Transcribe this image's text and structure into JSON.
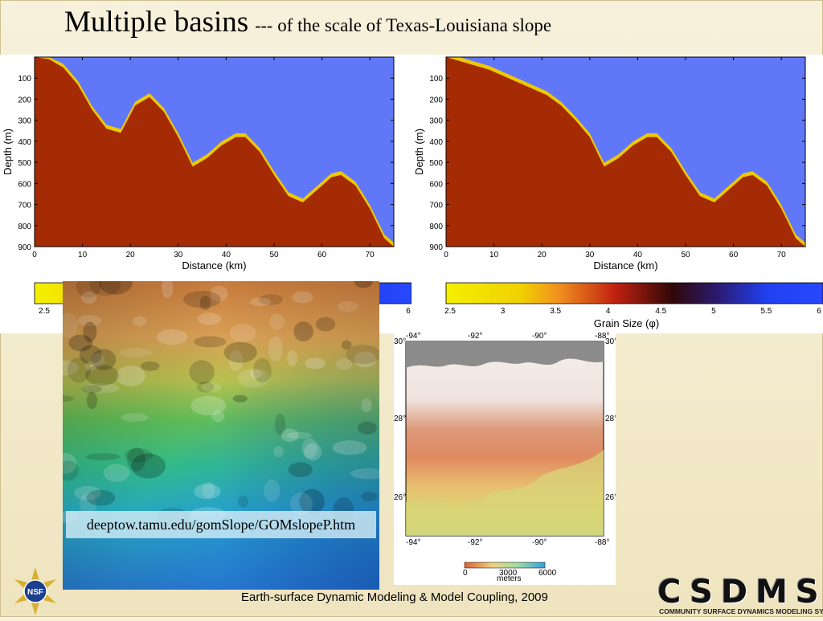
{
  "slide": {
    "title_main": "Multiple basins",
    "title_dash": "---",
    "title_sub": "of the scale of Texas-Louisiana slope",
    "url_caption": "deeptow.tamu.edu/gomSlope/GOMslopeP.htm",
    "footer": "Earth-surface Dynamic Modeling & Model Coupling, 2009",
    "csdms_word": "CSDMS",
    "csdms_sub": "COMMUNITY SURFACE DYNAMICS MODELING SYSTEM",
    "nsf_text": "NSF"
  },
  "colors": {
    "water": "#6078f7",
    "sediment_red": "#a52b05",
    "sand_yellow": "#f0c800",
    "sand_dark": "#c79300"
  },
  "chart_data": [
    {
      "type": "area",
      "title": "",
      "xlabel": "Distance (km)",
      "ylabel": "Depth (m)",
      "xlim": [
        0,
        75
      ],
      "ylim": [
        900,
        0
      ],
      "xticks": [
        "0",
        "10",
        "20",
        "30",
        "40",
        "50",
        "60",
        "70"
      ],
      "yticks": [
        "100",
        "200",
        "300",
        "400",
        "500",
        "600",
        "700",
        "800",
        "900"
      ],
      "series": [
        {
          "x": [
            0,
            3,
            6,
            9,
            12,
            15,
            18,
            21,
            24,
            27,
            30,
            33,
            36,
            39,
            42,
            44,
            47,
            50,
            53,
            56,
            59,
            62,
            64,
            67,
            70,
            73,
            75
          ],
          "y": [
            0,
            10,
            50,
            130,
            250,
            340,
            360,
            230,
            190,
            260,
            380,
            520,
            480,
            420,
            380,
            380,
            450,
            560,
            660,
            690,
            630,
            570,
            560,
            610,
            720,
            860,
            900
          ]
        }
      ]
    },
    {
      "type": "area",
      "title": "",
      "xlabel": "Distance (km)",
      "ylabel": "Depth (m)",
      "xlim": [
        0,
        75
      ],
      "ylim": [
        900,
        0
      ],
      "xticks": [
        "0",
        "10",
        "20",
        "30",
        "40",
        "50",
        "60",
        "70"
      ],
      "yticks": [
        "100",
        "200",
        "300",
        "400",
        "500",
        "600",
        "700",
        "800",
        "900"
      ],
      "series": [
        {
          "x": [
            0,
            3,
            6,
            9,
            12,
            15,
            18,
            21,
            24,
            27,
            30,
            33,
            36,
            39,
            42,
            44,
            47,
            50,
            53,
            56,
            59,
            62,
            64,
            67,
            70,
            73,
            75
          ],
          "y": [
            0,
            20,
            40,
            60,
            90,
            120,
            150,
            180,
            230,
            300,
            380,
            520,
            480,
            420,
            380,
            380,
            450,
            560,
            660,
            690,
            630,
            570,
            560,
            610,
            720,
            860,
            900
          ]
        }
      ]
    }
  ],
  "colorbar": {
    "label": "Grain Size (φ)",
    "ticks": [
      "2.5",
      "3",
      "3.5",
      "4",
      "4.5",
      "5",
      "5.5",
      "6"
    ],
    "left_ticks_visible": [
      "2.5",
      "6"
    ]
  },
  "map_panel": {
    "top_labels": [
      "-94°",
      "-92°",
      "-90°",
      "-88°"
    ],
    "side_labels": [
      "30°",
      "28°",
      "26°"
    ],
    "scale_ticks": [
      "0",
      "3000",
      "6000"
    ],
    "scale_unit": "meters"
  }
}
